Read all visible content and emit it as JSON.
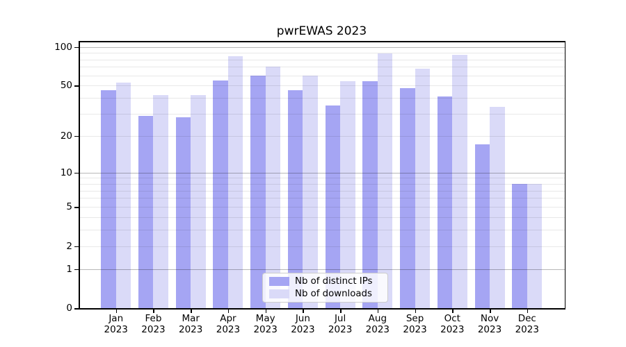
{
  "title": "pwrEWAS 2023",
  "colors": {
    "bar_distinct_ips": "#a5a5f3",
    "bar_downloads": "#dadaf8",
    "grid_minor": "rgba(0,0,0,0.09)",
    "grid_major": "rgba(0,0,0,0.28)",
    "spine": "#000000"
  },
  "chart_data": {
    "type": "bar",
    "title": "pwrEWAS 2023",
    "categories": [
      "Jan",
      "Feb",
      "Mar",
      "Apr",
      "May",
      "Jun",
      "Jul",
      "Aug",
      "Sep",
      "Oct",
      "Nov",
      "Dec"
    ],
    "category_year": "2023",
    "series": [
      {
        "name": "Nb of distinct IPs",
        "color": "#a5a5f3",
        "values": [
          46,
          29,
          28,
          55,
          60,
          46,
          35,
          54,
          48,
          41,
          17,
          8
        ]
      },
      {
        "name": "Nb of downloads",
        "color": "#dadaf8",
        "values": [
          53,
          42,
          42,
          85,
          70,
          60,
          54,
          89,
          68,
          87,
          34,
          8
        ]
      }
    ],
    "xlabel": "",
    "ylabel": "",
    "yscale": "log1p",
    "ylim": [
      0,
      100
    ],
    "yticks": [
      0,
      1,
      2,
      5,
      10,
      20,
      50,
      100
    ],
    "minor_gridlines": [
      2,
      3,
      4,
      5,
      6,
      7,
      8,
      9,
      20,
      30,
      40,
      50,
      60,
      70,
      80,
      90
    ],
    "major_gridlines": [
      1,
      10,
      100
    ],
    "grid": true,
    "legend_position": "lower center"
  }
}
